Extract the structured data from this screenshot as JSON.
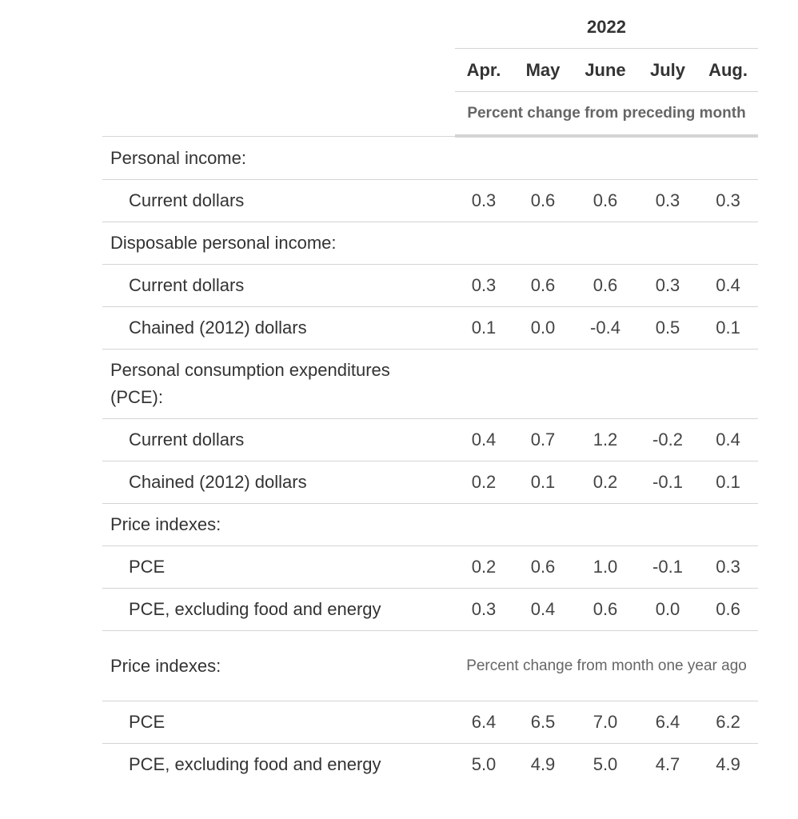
{
  "year": "2022",
  "months": [
    "Apr.",
    "May",
    "June",
    "July",
    "Aug."
  ],
  "unit_monthly": "Percent change from preceding month",
  "unit_yearly": "Percent change from month one year ago",
  "sections": {
    "personal_income": {
      "label": "Personal income:",
      "current_dollars": {
        "label": "Current dollars",
        "values": [
          "0.3",
          "0.6",
          "0.6",
          "0.3",
          "0.3"
        ]
      }
    },
    "disposable_income": {
      "label": "Disposable personal income:",
      "current_dollars": {
        "label": "Current dollars",
        "values": [
          "0.3",
          "0.6",
          "0.6",
          "0.3",
          "0.4"
        ]
      },
      "chained_dollars": {
        "label": "Chained (2012) dollars",
        "values": [
          "0.1",
          "0.0",
          "-0.4",
          "0.5",
          "0.1"
        ]
      }
    },
    "pce": {
      "label": "Personal consumption expenditures (PCE):",
      "current_dollars": {
        "label": "Current dollars",
        "values": [
          "0.4",
          "0.7",
          "1.2",
          "-0.2",
          "0.4"
        ]
      },
      "chained_dollars": {
        "label": "Chained (2012) dollars",
        "values": [
          "0.2",
          "0.1",
          "0.2",
          "-0.1",
          "0.1"
        ]
      }
    },
    "price_indexes_monthly": {
      "label": "Price indexes:",
      "pce": {
        "label": "PCE",
        "values": [
          "0.2",
          "0.6",
          "1.0",
          "-0.1",
          "0.3"
        ]
      },
      "pce_core": {
        "label": "PCE, excluding food and energy",
        "values": [
          "0.3",
          "0.4",
          "0.6",
          "0.0",
          "0.6"
        ]
      }
    },
    "price_indexes_yearly": {
      "label": "Price indexes:",
      "pce": {
        "label": "PCE",
        "values": [
          "6.4",
          "6.5",
          "7.0",
          "6.4",
          "6.2"
        ]
      },
      "pce_core": {
        "label": "PCE, excluding food and energy",
        "values": [
          "5.0",
          "4.9",
          "5.0",
          "4.7",
          "4.9"
        ]
      }
    }
  }
}
